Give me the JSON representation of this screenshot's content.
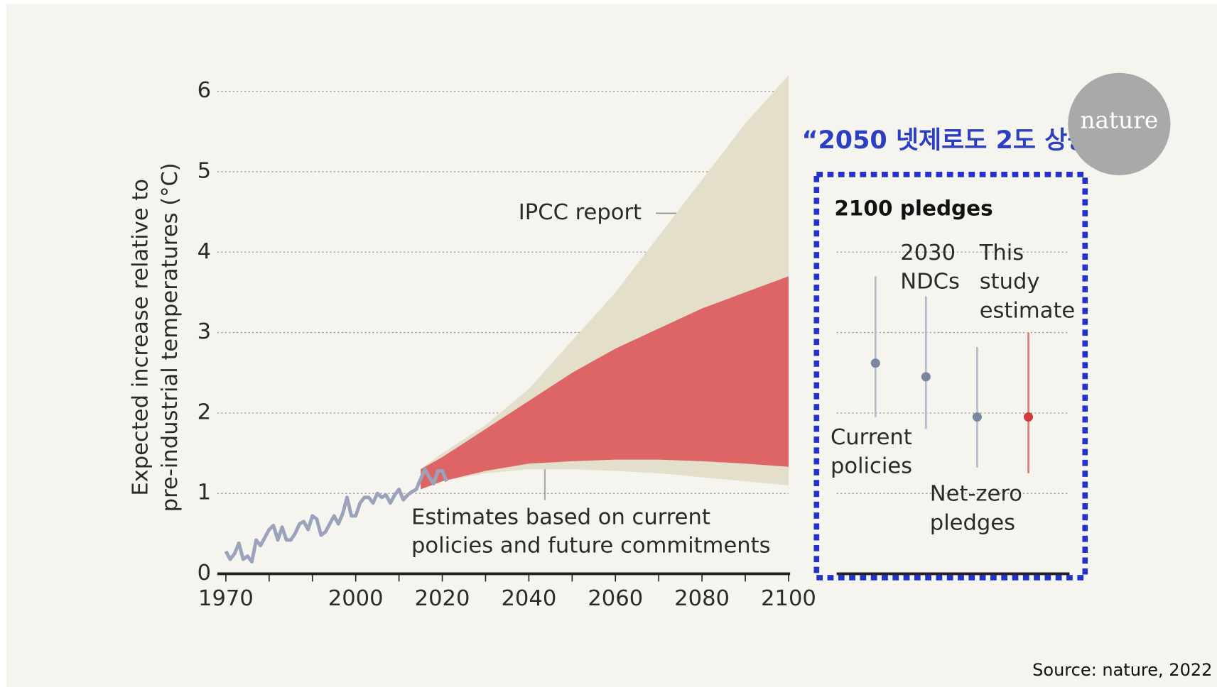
{
  "headline": "“2050 넷제로도 2도 상승”",
  "logo": "nature",
  "source": "Source: nature, 2022",
  "chart_data": [
    {
      "type": "band",
      "y_label": [
        "Expected increase relative to",
        "pre-industrial temperatures (°C)"
      ],
      "xlim": [
        1970,
        2100
      ],
      "ylim": [
        0,
        6.2
      ],
      "xticks": [
        1970,
        2000,
        2020,
        2040,
        2060,
        2080,
        2100
      ],
      "minor_xticks": [
        1980,
        1990,
        2010,
        2030,
        2050,
        2070,
        2090
      ],
      "yticks": [
        0,
        1,
        2,
        3,
        4,
        5,
        6
      ],
      "grid": true,
      "band_x": [
        2015,
        2020,
        2030,
        2040,
        2050,
        2060,
        2070,
        2080,
        2090,
        2100
      ],
      "series": [
        {
          "label": [
            "IPCC report"
          ],
          "color": "#e3dfcb",
          "low": [
            1.05,
            1.15,
            1.25,
            1.3,
            1.3,
            1.28,
            1.25,
            1.2,
            1.15,
            1.1
          ],
          "high": [
            1.3,
            1.5,
            1.85,
            2.3,
            2.9,
            3.5,
            4.2,
            4.9,
            5.6,
            6.2
          ]
        },
        {
          "label": [
            "Estimates based on current",
            "policies and future commitments"
          ],
          "color": "#dd6566",
          "low": [
            1.05,
            1.15,
            1.28,
            1.37,
            1.4,
            1.42,
            1.42,
            1.4,
            1.37,
            1.33
          ],
          "high": [
            1.3,
            1.45,
            1.8,
            2.15,
            2.5,
            2.8,
            3.05,
            3.3,
            3.5,
            3.7
          ]
        }
      ],
      "history": {
        "color": "#9aa3bb",
        "x": [
          1970,
          1971,
          1972,
          1973,
          1974,
          1975,
          1976,
          1977,
          1978,
          1979,
          1980,
          1981,
          1982,
          1983,
          1984,
          1985,
          1986,
          1987,
          1988,
          1989,
          1990,
          1991,
          1992,
          1993,
          1994,
          1995,
          1996,
          1997,
          1998,
          1999,
          2000,
          2001,
          2002,
          2003,
          2004,
          2005,
          2006,
          2007,
          2008,
          2009,
          2010,
          2011,
          2012,
          2013,
          2014,
          2015,
          2016,
          2017,
          2018,
          2019,
          2020,
          2021
        ],
        "values": [
          0.28,
          0.18,
          0.25,
          0.38,
          0.18,
          0.22,
          0.15,
          0.42,
          0.35,
          0.45,
          0.55,
          0.6,
          0.42,
          0.58,
          0.42,
          0.42,
          0.5,
          0.62,
          0.65,
          0.55,
          0.72,
          0.68,
          0.48,
          0.52,
          0.62,
          0.72,
          0.62,
          0.75,
          0.95,
          0.72,
          0.72,
          0.88,
          0.95,
          0.95,
          0.88,
          1.0,
          0.95,
          0.98,
          0.88,
          0.98,
          1.05,
          0.92,
          0.98,
          1.02,
          1.05,
          1.18,
          1.3,
          1.2,
          1.12,
          1.28,
          1.28,
          1.15
        ]
      }
    },
    {
      "type": "errorbar",
      "title": "2100 pledges",
      "ylim": [
        0,
        6.2
      ],
      "yticks": [
        0,
        1,
        2,
        3,
        4,
        5,
        6
      ],
      "grid": true,
      "categories": [
        [
          "Current",
          "policies"
        ],
        [
          "2030",
          "NDCs"
        ],
        [
          "Net-zero",
          "pledges"
        ],
        [
          "This",
          "study",
          "estimate"
        ]
      ],
      "values": [
        2.62,
        2.45,
        1.95,
        1.95
      ],
      "low": [
        1.95,
        1.8,
        1.32,
        1.25
      ],
      "high": [
        3.7,
        3.45,
        2.82,
        3.0
      ],
      "colors": [
        "#7a87a0",
        "#7a87a0",
        "#7a87a0",
        "#d43c3c"
      ],
      "bar_colors": [
        "#b4bccb",
        "#b4bccb",
        "#b4bccb",
        "#e07a7a"
      ]
    }
  ]
}
